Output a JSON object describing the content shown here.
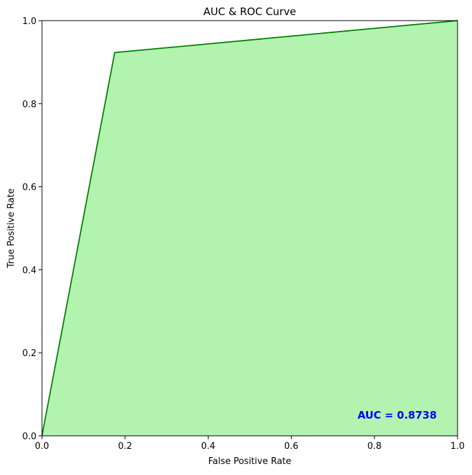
{
  "chart_data": {
    "type": "area",
    "title": "AUC & ROC Curve",
    "xlabel": "False Positive Rate",
    "ylabel": "True Positive Rate",
    "xlim": [
      0.0,
      1.0
    ],
    "ylim": [
      0.0,
      1.0
    ],
    "xticks": [
      0.0,
      0.2,
      0.4,
      0.6,
      0.8,
      1.0
    ],
    "yticks": [
      0.0,
      0.2,
      0.4,
      0.6,
      0.8,
      1.0
    ],
    "xtick_labels": [
      "0.0",
      "0.2",
      "0.4",
      "0.6",
      "0.8",
      "1.0"
    ],
    "ytick_labels": [
      "0.0",
      "0.2",
      "0.4",
      "0.6",
      "0.8",
      "1.0"
    ],
    "grid": false,
    "series": [
      {
        "x": [
          0.0,
          0.175,
          1.0
        ],
        "y": [
          0.0,
          0.923,
          1.0
        ],
        "line_color": "#008000",
        "fill_color": "#b2f3b0"
      }
    ],
    "annotation": {
      "text": "AUC = 0.8738",
      "x": 0.95,
      "y": 0.05,
      "color": "#0000ff"
    }
  }
}
